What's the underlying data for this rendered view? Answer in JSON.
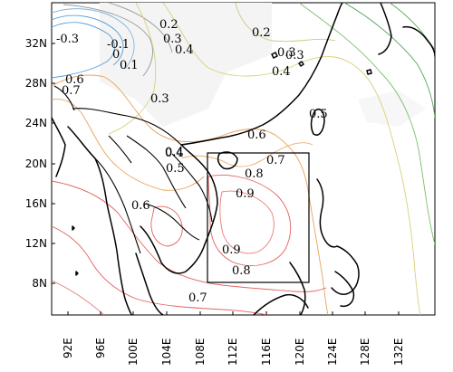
{
  "map": {
    "lat_labels": [
      "32N",
      "28N",
      "24N",
      "20N",
      "16N",
      "12N",
      "8N"
    ],
    "lon_labels": [
      "92E",
      "96E",
      "100E",
      "104E",
      "108E",
      "112E",
      "116E",
      "120E",
      "124E",
      "128E",
      "132E"
    ],
    "contour_labels": [
      "-0.3",
      "-0.1",
      "0",
      "0.1",
      "0.2",
      "0.3",
      "0.4",
      "0.6",
      "0.7",
      "0.3",
      "0.4",
      "0.3",
      "0.2",
      "0.3",
      "0.4",
      "0.5",
      "0.6",
      "0.4",
      "0.5",
      "0.7",
      "0.8",
      "0.9",
      "0.6",
      "0.9",
      "0.8",
      "0.7"
    ],
    "box_region": {
      "lon_min": "108E",
      "lon_max": "120E",
      "lat_min": "8N",
      "lat_max": "21N"
    },
    "colors": {
      "coastline": "#000000",
      "contour_red": "#e3625f",
      "contour_orange": "#e8a35c",
      "contour_yellow": "#d8d07a",
      "contour_green": "#58a85a",
      "contour_blue": "#5aa0d8",
      "contour_gray": "#9a9a9a",
      "box": "#000000"
    }
  }
}
